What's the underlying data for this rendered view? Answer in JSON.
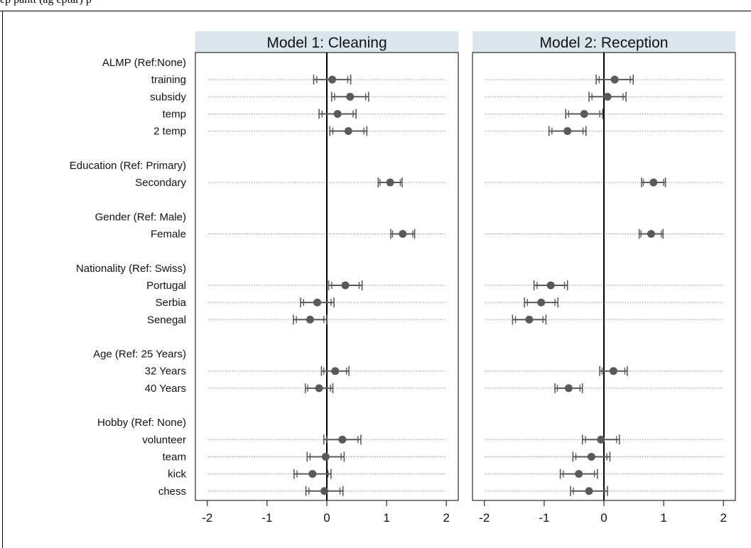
{
  "header": {
    "cropped_text": "ep pantt (ag eptar) p"
  },
  "colors": {
    "facet_header_bg": "#d9e6ee",
    "marker": "#5a5a5a",
    "ci_line": "#5a5a5a",
    "zero_line": "#000000",
    "guide_line": "#777777"
  },
  "rows": [
    {
      "label": "ALMP (Ref:None)",
      "kind": "group"
    },
    {
      "label": "training",
      "kind": "item"
    },
    {
      "label": "subsidy",
      "kind": "item"
    },
    {
      "label": "temp",
      "kind": "item"
    },
    {
      "label": "2 temp",
      "kind": "item"
    },
    {
      "label": "",
      "kind": "blank"
    },
    {
      "label": "Education (Ref: Primary)",
      "kind": "group"
    },
    {
      "label": "Secondary",
      "kind": "item"
    },
    {
      "label": "",
      "kind": "blank"
    },
    {
      "label": "Gender (Ref: Male)",
      "kind": "group"
    },
    {
      "label": "Female",
      "kind": "item"
    },
    {
      "label": "",
      "kind": "blank"
    },
    {
      "label": "Nationality (Ref: Swiss)",
      "kind": "group"
    },
    {
      "label": "Portugal",
      "kind": "item"
    },
    {
      "label": "Serbia",
      "kind": "item"
    },
    {
      "label": "Senegal",
      "kind": "item"
    },
    {
      "label": "",
      "kind": "blank"
    },
    {
      "label": "Age (Ref: 25 Years)",
      "kind": "group"
    },
    {
      "label": "32 Years",
      "kind": "item"
    },
    {
      "label": "40 Years",
      "kind": "item"
    },
    {
      "label": "",
      "kind": "blank"
    },
    {
      "label": "Hobby (Ref: None)",
      "kind": "group"
    },
    {
      "label": "volunteer",
      "kind": "item"
    },
    {
      "label": "team",
      "kind": "item"
    },
    {
      "label": "kick",
      "kind": "item"
    },
    {
      "label": "chess",
      "kind": "item"
    }
  ],
  "chart_data": {
    "type": "scatter",
    "xlim": [
      -2.2,
      2.2
    ],
    "xticks": [
      -2,
      -1,
      0,
      1,
      2
    ],
    "xtick_labels": [
      "-2",
      "-1",
      "0",
      "1",
      "2"
    ],
    "reference_line": 0,
    "grid": false,
    "categories": [
      "training",
      "subsidy",
      "temp",
      "2 temp",
      "Secondary",
      "Female",
      "Portugal",
      "Serbia",
      "Senegal",
      "32 Years",
      "40 Years",
      "volunteer",
      "team",
      "kick",
      "chess"
    ],
    "panels": [
      {
        "title": "Model 1: Cleaning",
        "points": [
          {
            "label": "training",
            "estimate": 0.09,
            "ci_low": -0.22,
            "ci_high": 0.4,
            "ci90_low": -0.17,
            "ci90_high": 0.35
          },
          {
            "label": "subsidy",
            "estimate": 0.39,
            "ci_low": 0.08,
            "ci_high": 0.7,
            "ci90_low": 0.13,
            "ci90_high": 0.65
          },
          {
            "label": "temp",
            "estimate": 0.18,
            "ci_low": -0.13,
            "ci_high": 0.49,
            "ci90_low": -0.08,
            "ci90_high": 0.44
          },
          {
            "label": "2 temp",
            "estimate": 0.36,
            "ci_low": 0.05,
            "ci_high": 0.67,
            "ci90_low": 0.1,
            "ci90_high": 0.62
          },
          {
            "label": "Secondary",
            "estimate": 1.06,
            "ci_low": 0.86,
            "ci_high": 1.26,
            "ci90_low": 0.89,
            "ci90_high": 1.23
          },
          {
            "label": "Female",
            "estimate": 1.27,
            "ci_low": 1.07,
            "ci_high": 1.47,
            "ci90_low": 1.1,
            "ci90_high": 1.44
          },
          {
            "label": "Portugal",
            "estimate": 0.31,
            "ci_low": 0.03,
            "ci_high": 0.59,
            "ci90_low": 0.08,
            "ci90_high": 0.54
          },
          {
            "label": "Serbia",
            "estimate": -0.16,
            "ci_low": -0.44,
            "ci_high": 0.12,
            "ci90_low": -0.39,
            "ci90_high": 0.07
          },
          {
            "label": "Senegal",
            "estimate": -0.28,
            "ci_low": -0.56,
            "ci_high": 0.0,
            "ci90_low": -0.51,
            "ci90_high": -0.05
          },
          {
            "label": "32 Years",
            "estimate": 0.14,
            "ci_low": -0.09,
            "ci_high": 0.37,
            "ci90_low": -0.05,
            "ci90_high": 0.33
          },
          {
            "label": "40 Years",
            "estimate": -0.13,
            "ci_low": -0.36,
            "ci_high": 0.1,
            "ci90_low": -0.32,
            "ci90_high": 0.06
          },
          {
            "label": "volunteer",
            "estimate": 0.26,
            "ci_low": -0.05,
            "ci_high": 0.57,
            "ci90_low": 0.0,
            "ci90_high": 0.52
          },
          {
            "label": "team",
            "estimate": -0.02,
            "ci_low": -0.33,
            "ci_high": 0.29,
            "ci90_low": -0.28,
            "ci90_high": 0.24
          },
          {
            "label": "kick",
            "estimate": -0.24,
            "ci_low": -0.55,
            "ci_high": 0.07,
            "ci90_low": -0.5,
            "ci90_high": 0.02
          },
          {
            "label": "chess",
            "estimate": -0.04,
            "ci_low": -0.35,
            "ci_high": 0.27,
            "ci90_low": -0.3,
            "ci90_high": 0.22
          }
        ]
      },
      {
        "title": "Model 2: Reception",
        "points": [
          {
            "label": "training",
            "estimate": 0.18,
            "ci_low": -0.13,
            "ci_high": 0.49,
            "ci90_low": -0.08,
            "ci90_high": 0.44
          },
          {
            "label": "subsidy",
            "estimate": 0.06,
            "ci_low": -0.25,
            "ci_high": 0.37,
            "ci90_low": -0.2,
            "ci90_high": 0.32
          },
          {
            "label": "temp",
            "estimate": -0.33,
            "ci_low": -0.64,
            "ci_high": -0.02,
            "ci90_low": -0.59,
            "ci90_high": -0.07
          },
          {
            "label": "2 temp",
            "estimate": -0.61,
            "ci_low": -0.92,
            "ci_high": -0.3,
            "ci90_low": -0.87,
            "ci90_high": -0.35
          },
          {
            "label": "Secondary",
            "estimate": 0.83,
            "ci_low": 0.63,
            "ci_high": 1.03,
            "ci90_low": 0.66,
            "ci90_high": 1.0
          },
          {
            "label": "Female",
            "estimate": 0.79,
            "ci_low": 0.59,
            "ci_high": 0.99,
            "ci90_low": 0.62,
            "ci90_high": 0.96
          },
          {
            "label": "Portugal",
            "estimate": -0.89,
            "ci_low": -1.17,
            "ci_high": -0.61,
            "ci90_low": -1.12,
            "ci90_high": -0.66
          },
          {
            "label": "Serbia",
            "estimate": -1.05,
            "ci_low": -1.33,
            "ci_high": -0.77,
            "ci90_low": -1.28,
            "ci90_high": -0.82
          },
          {
            "label": "Senegal",
            "estimate": -1.25,
            "ci_low": -1.53,
            "ci_high": -0.97,
            "ci90_low": -1.48,
            "ci90_high": -1.02
          },
          {
            "label": "32 Years",
            "estimate": 0.16,
            "ci_low": -0.07,
            "ci_high": 0.39,
            "ci90_low": -0.03,
            "ci90_high": 0.35
          },
          {
            "label": "40 Years",
            "estimate": -0.59,
            "ci_low": -0.82,
            "ci_high": -0.36,
            "ci90_low": -0.78,
            "ci90_high": -0.4
          },
          {
            "label": "volunteer",
            "estimate": -0.05,
            "ci_low": -0.36,
            "ci_high": 0.26,
            "ci90_low": -0.31,
            "ci90_high": 0.21
          },
          {
            "label": "team",
            "estimate": -0.21,
            "ci_low": -0.52,
            "ci_high": 0.1,
            "ci90_low": -0.47,
            "ci90_high": 0.05
          },
          {
            "label": "kick",
            "estimate": -0.42,
            "ci_low": -0.73,
            "ci_high": -0.11,
            "ci90_low": -0.68,
            "ci90_high": -0.16
          },
          {
            "label": "chess",
            "estimate": -0.25,
            "ci_low": -0.56,
            "ci_high": 0.06,
            "ci90_low": -0.51,
            "ci90_high": 0.01
          }
        ]
      }
    ]
  }
}
